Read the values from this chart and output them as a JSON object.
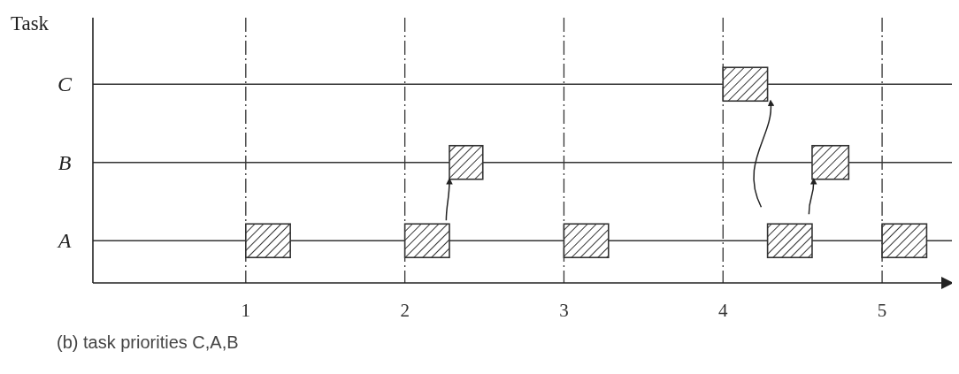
{
  "chart_data": {
    "type": "bar",
    "orientation": "horizontal",
    "ylabel": "Task",
    "categories": [
      "C",
      "B",
      "A"
    ],
    "series": [
      {
        "color": "#333333",
        "values": [
          null,
          null,
          0.28
        ],
        "base": [
          null,
          null,
          1
        ]
      },
      {
        "color": "#333333",
        "values": [
          null,
          0.21,
          0.28
        ],
        "base": [
          null,
          2.28,
          2
        ]
      },
      {
        "color": "#333333",
        "values": [
          null,
          null,
          0.28
        ],
        "base": [
          null,
          null,
          3
        ]
      },
      {
        "color": "#333333",
        "values": [
          0.28,
          0.23,
          0.28
        ],
        "base": [
          4,
          4.56,
          4.28
        ]
      },
      {
        "color": "#333333",
        "values": [
          null,
          null,
          0.28
        ],
        "base": [
          null,
          null,
          5
        ]
      }
    ],
    "xlim": [
      0,
      5.45
    ],
    "xticks": [
      1,
      2,
      3,
      4,
      5
    ],
    "grid": true,
    "annotations": [
      "(b) task priorities C,A,B"
    ]
  }
}
